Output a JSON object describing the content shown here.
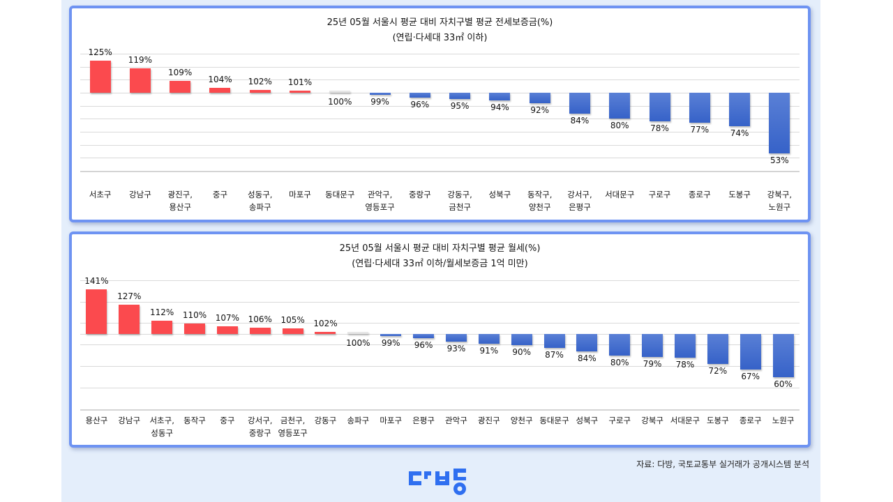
{
  "source_note": "자료: 다방, 국토교통부 실거래가 공개시스템 분석",
  "logo": {
    "name": "다방",
    "color": "#2f6ff0"
  },
  "colors": {
    "above_avg": "#fb4a4e",
    "below_avg": "#3f68cc",
    "panel_border": "#6e93f2",
    "page_bg": "#e4eefb"
  },
  "chart_data": [
    {
      "type": "bar",
      "title": "25년 05월 서울시 평균 대비 자치구별 평균 전세보증금(%)",
      "subtitle": "(연립·다세대 33㎡ 이하)",
      "baseline": 100,
      "xlabel": "",
      "ylabel": "",
      "grid": true,
      "categories": [
        "서초구",
        "강남구",
        "광진구,\n용산구",
        "중구",
        "성동구,\n송파구",
        "마포구",
        "동대문구",
        "관악구,\n영등포구",
        "중랑구",
        "강동구,\n금천구",
        "성북구",
        "동작구,\n양천구",
        "강서구,\n은평구",
        "서대문구",
        "구로구",
        "종로구",
        "도봉구",
        "강북구,\n노원구"
      ],
      "values": [
        125,
        119,
        109,
        104,
        102,
        101,
        100,
        99,
        96,
        95,
        94,
        92,
        84,
        80,
        78,
        77,
        74,
        53
      ],
      "labels": [
        "125%",
        "119%",
        "109%",
        "104%",
        "102%",
        "101%",
        "100%",
        "99%",
        "96%",
        "95%",
        "94%",
        "92%",
        "84%",
        "80%",
        "78%",
        "77%",
        "74%",
        "53%"
      ]
    },
    {
      "type": "bar",
      "title": "25년 05월 서울시 평균 대비 자치구별 평균 월세(%)",
      "subtitle": "(연립·다세대 33㎡ 이하/월세보증금  1억 미만)",
      "baseline": 100,
      "xlabel": "",
      "ylabel": "",
      "grid": true,
      "categories": [
        "용산구",
        "강남구",
        "서초구,\n성동구",
        "동작구",
        "중구",
        "강서구,\n중랑구",
        "금천구,\n영등포구",
        "강동구",
        "송파구",
        "마포구",
        "은평구",
        "관악구",
        "광진구",
        "양천구",
        "동대문구",
        "성북구",
        "구로구",
        "강북구",
        "서대문구",
        "도봉구",
        "종로구",
        "노원구"
      ],
      "values": [
        141,
        127,
        112,
        110,
        107,
        106,
        105,
        102,
        100,
        99,
        96,
        93,
        91,
        90,
        87,
        84,
        80,
        79,
        78,
        72,
        67,
        60
      ],
      "labels": [
        "141%",
        "127%",
        "112%",
        "110%",
        "107%",
        "106%",
        "105%",
        "102%",
        "100%",
        "99%",
        "96%",
        "93%",
        "91%",
        "90%",
        "87%",
        "84%",
        "80%",
        "79%",
        "78%",
        "72%",
        "67%",
        "60%"
      ]
    }
  ]
}
